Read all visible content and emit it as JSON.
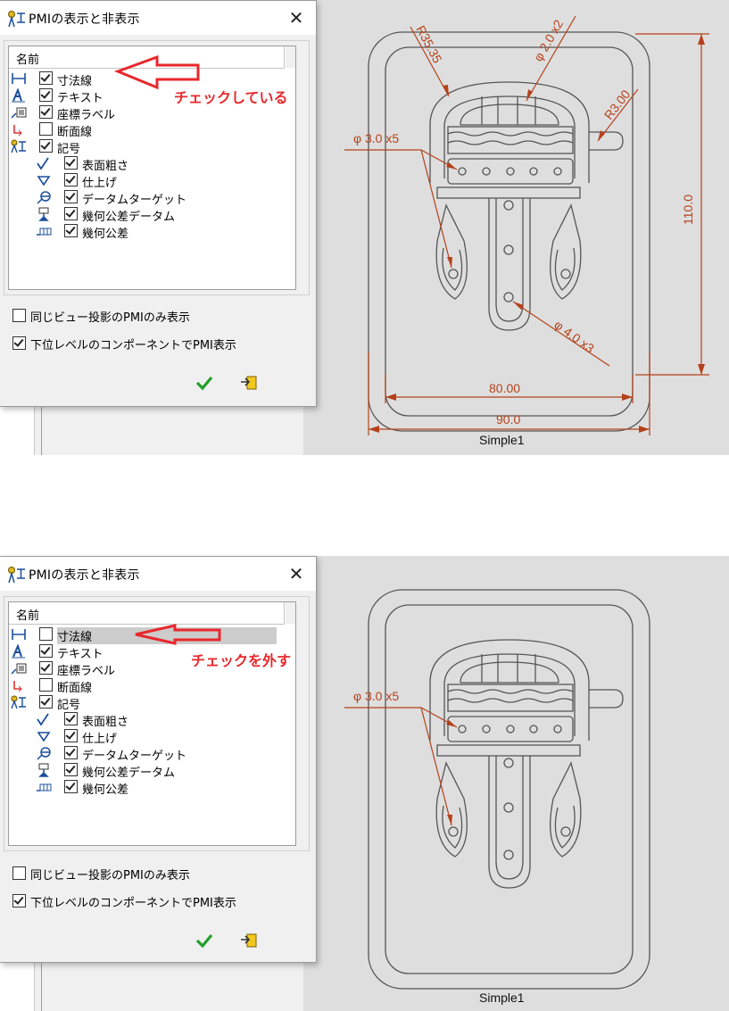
{
  "dialog": {
    "title": "PMIの表示と非表示",
    "column_header": "名前",
    "items": [
      {
        "label": "寸法線",
        "icon": "dimension-icon",
        "checked": true
      },
      {
        "label": "テキスト",
        "icon": "text-icon",
        "checked": true
      },
      {
        "label": "座標ラベル",
        "icon": "coordinate-label-icon",
        "checked": true
      },
      {
        "label": "断面線",
        "icon": "section-line-icon",
        "checked": false
      },
      {
        "label": "記号",
        "icon": "symbol-icon",
        "checked": true
      },
      {
        "label": "表面粗さ",
        "icon": "surface-roughness-icon",
        "checked": true
      },
      {
        "label": "仕上げ",
        "icon": "finish-icon",
        "checked": true
      },
      {
        "label": "データムターゲット",
        "icon": "datum-target-icon",
        "checked": true
      },
      {
        "label": "幾何公差データム",
        "icon": "gdt-datum-icon",
        "checked": true
      },
      {
        "label": "幾何公差",
        "icon": "gdt-icon",
        "checked": true
      }
    ],
    "options": [
      {
        "label": "同じビュー投影のPMIのみ表示",
        "checked": false
      },
      {
        "label": "下位レベルのコンポーネントでPMI表示",
        "checked": true
      }
    ],
    "ok_icon": "check-icon",
    "cancel_icon": "cancel-icon"
  },
  "panels": {
    "top": {
      "annotation": "チェックしている",
      "dimension_checked": true,
      "view_label": "Simple1",
      "dimensions": [
        "R35.35",
        "φ 2.0 x2",
        "R3.00",
        "φ 3.0 x5",
        "110.0",
        "φ 4.0 x3",
        "80.00",
        "90.0"
      ]
    },
    "bottom": {
      "annotation": "チェックを外す",
      "dimension_checked": false,
      "view_label": "Simple1",
      "dimensions": [
        "φ 3.0 x5"
      ]
    }
  },
  "colors": {
    "annotation": "#e8282c",
    "dimension": "#b5411a",
    "part_line": "#555555",
    "sheet_bg": "#dedede"
  }
}
